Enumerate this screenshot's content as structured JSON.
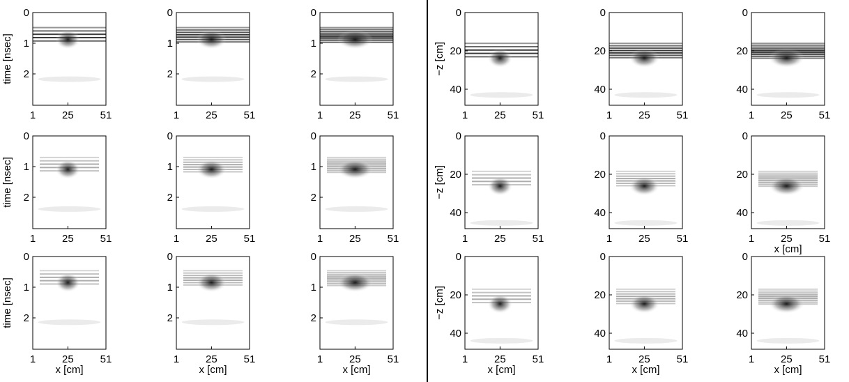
{
  "left_panels": {
    "ylabel": "time [nsec]",
    "xlabel": "x [cm]",
    "yticks": [
      "0",
      "1",
      "2"
    ],
    "xticks": [
      "1",
      "25",
      "51"
    ]
  },
  "right_panels": {
    "ylabel": "−z [cm]",
    "xlabel": "x [cm]",
    "yticks": [
      "0",
      "20",
      "40"
    ],
    "xticks": [
      "1",
      "25",
      "51"
    ]
  }
}
